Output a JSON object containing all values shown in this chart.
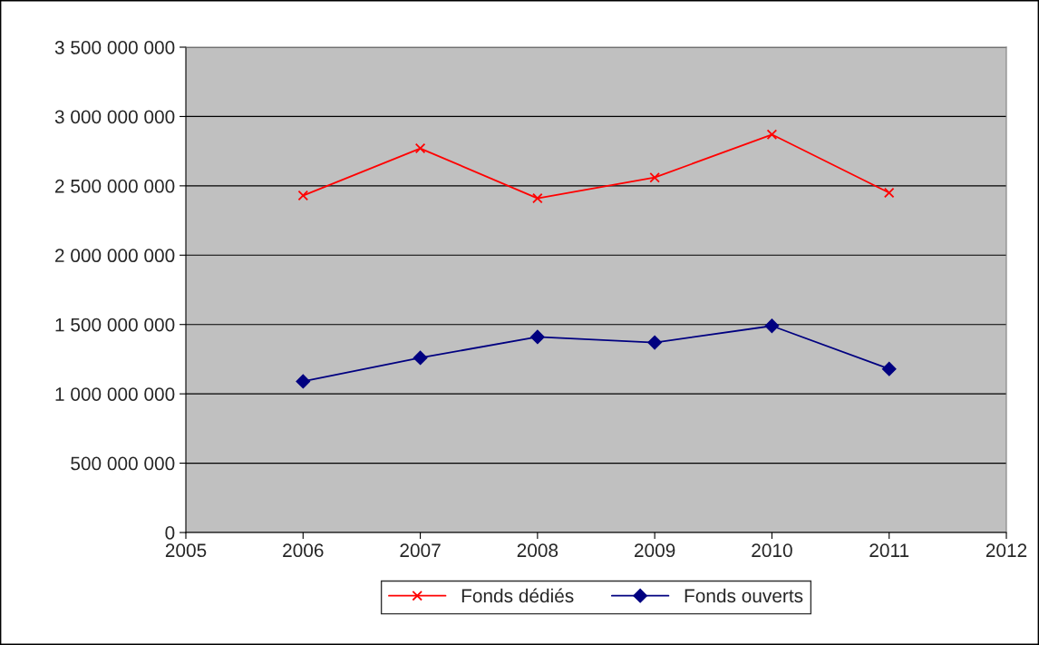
{
  "chart_data": {
    "type": "line",
    "x": [
      2006,
      2007,
      2008,
      2009,
      2010,
      2011
    ],
    "series": [
      {
        "name": "Fonds dédiés",
        "color": "#ff0000",
        "marker": "cross",
        "values": [
          2430000000,
          2770000000,
          2410000000,
          2560000000,
          2870000000,
          2450000000
        ]
      },
      {
        "name": "Fonds ouverts",
        "color": "#000080",
        "marker": "diamond",
        "values": [
          1090000000,
          1260000000,
          1410000000,
          1370000000,
          1490000000,
          1180000000
        ]
      }
    ],
    "xlim": [
      2005,
      2012
    ],
    "xticks": [
      2005,
      2006,
      2007,
      2008,
      2009,
      2010,
      2011,
      2012
    ],
    "ylim": [
      0,
      3500000000
    ],
    "yticks": [
      0,
      {
        "value": 500000000,
        "label": "500 000 000"
      },
      {
        "value": 1000000000,
        "label": "1 000 000 000"
      },
      {
        "value": 1500000000,
        "label": "1 500 000 000"
      },
      {
        "value": 2000000000,
        "label": "2 000 000 000"
      },
      {
        "value": 2500000000,
        "label": "2 500 000 000"
      },
      {
        "value": 3000000000,
        "label": "3 000 000 000"
      },
      {
        "value": 3500000000,
        "label": "3 500 000 000"
      }
    ],
    "grid": "y",
    "legend": "bottom",
    "line_style": "solid"
  }
}
